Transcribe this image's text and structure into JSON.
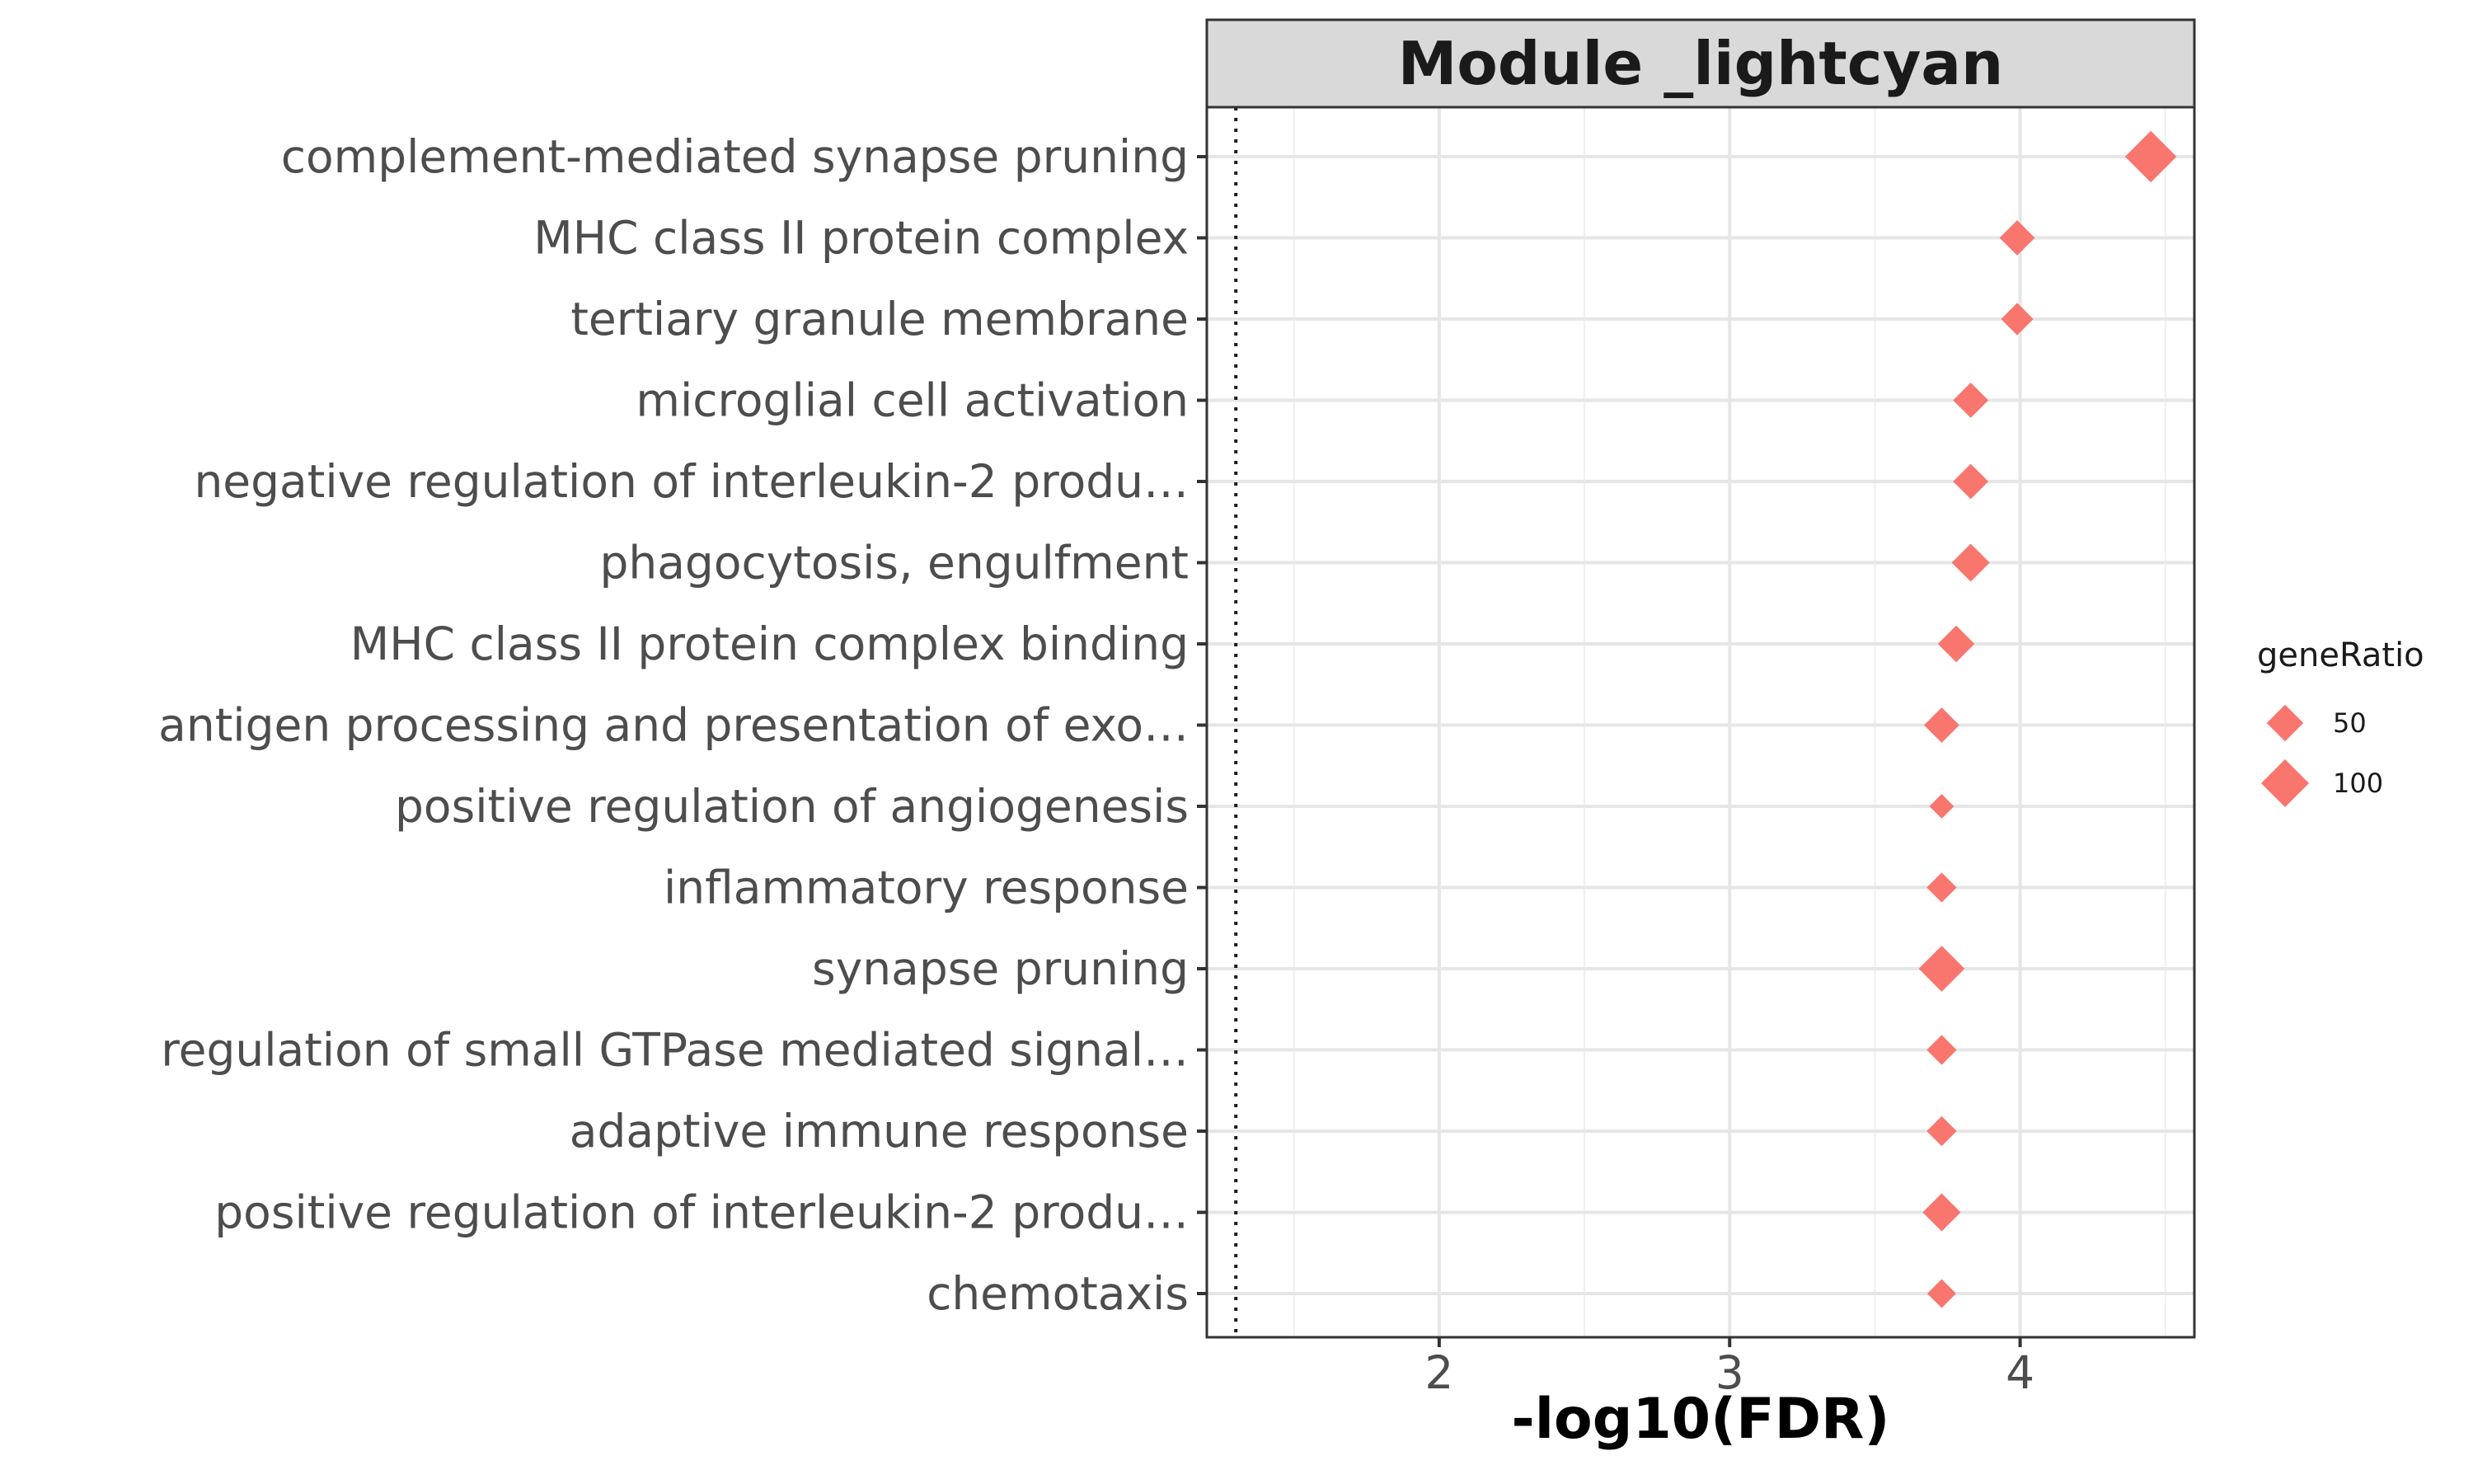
{
  "chart_data": {
    "type": "scatter",
    "title": "Module _lightcyan",
    "xlabel": "-log10(FDR)",
    "ylabel": "",
    "xlim": [
      1.2,
      4.6
    ],
    "xticks": [
      2,
      3,
      4
    ],
    "xtick_labels": [
      "2",
      "3",
      "4"
    ],
    "grid": true,
    "reference_line": {
      "x": 1.3,
      "style": "dotted"
    },
    "marker": "diamond",
    "marker_color": "#F8766D",
    "categories": [
      "complement-mediated synapse pruning",
      "MHC class II protein complex",
      "tertiary granule membrane",
      "microglial cell activation",
      "negative regulation of interleukin-2 produ…",
      "phagocytosis, engulfment",
      "MHC class II protein complex binding",
      "antigen processing and presentation of exo…",
      "positive regulation of angiogenesis",
      "inflammatory response",
      "synapse pruning",
      "regulation of small GTPase mediated signal…",
      "adaptive immune response",
      "positive regulation of interleukin-2 produ…",
      "chemotaxis"
    ],
    "values": [
      4.45,
      3.99,
      3.99,
      3.83,
      3.83,
      3.83,
      3.78,
      3.73,
      3.73,
      3.73,
      3.73,
      3.73,
      3.73,
      3.73,
      3.73
    ],
    "sizes": [
      120,
      45,
      35,
      45,
      45,
      55,
      50,
      45,
      15,
      28,
      90,
      28,
      28,
      55,
      25
    ],
    "legend": {
      "title": "geneRatio",
      "position": "right",
      "entries": [
        {
          "label": "50",
          "size": 50
        },
        {
          "label": "100",
          "size": 100
        }
      ]
    }
  }
}
